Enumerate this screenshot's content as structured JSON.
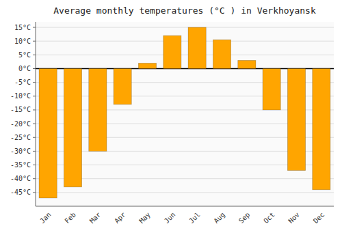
{
  "chart_data": {
    "type": "bar",
    "title": "Average monthly temperatures (°C ) in Verkhoyansk",
    "categories": [
      "Jan",
      "Feb",
      "Mar",
      "Apr",
      "May",
      "Jun",
      "Jul",
      "Aug",
      "Sep",
      "Oct",
      "Nov",
      "Dec"
    ],
    "values": [
      -47,
      -43,
      -30,
      -13,
      2,
      12,
      15,
      10.5,
      3,
      -15,
      -37,
      -44
    ],
    "color": "#FFA500",
    "ylim": [
      -50,
      17
    ],
    "yticks": [
      {
        "value": -45,
        "label": "-45°C"
      },
      {
        "value": -40,
        "label": "-40°C"
      },
      {
        "value": -35,
        "label": "-35°C"
      },
      {
        "value": -30,
        "label": "-30°C"
      },
      {
        "value": -25,
        "label": "-25°C"
      },
      {
        "value": -20,
        "label": "-20°C"
      },
      {
        "value": -15,
        "label": "-15°C"
      },
      {
        "value": -10,
        "label": "-10°C"
      },
      {
        "value": -5,
        "label": "-5°C"
      },
      {
        "value": 0,
        "label": "0°C"
      },
      {
        "value": 5,
        "label": "5°C"
      },
      {
        "value": 10,
        "label": "10°C"
      },
      {
        "value": 15,
        "label": "15°C"
      }
    ],
    "grid": true
  }
}
